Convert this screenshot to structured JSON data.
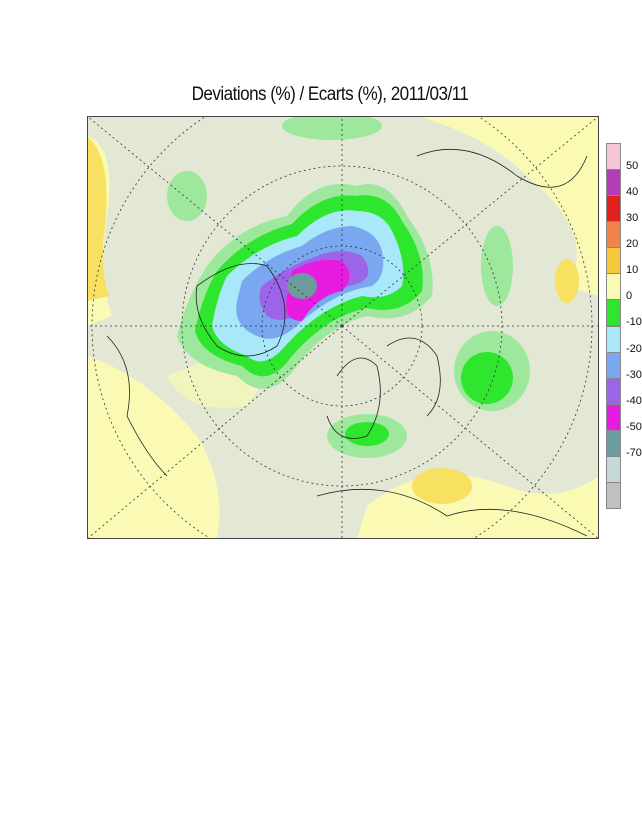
{
  "title": "Deviations (%) / Ecarts (%), 2011/03/11",
  "colorbar": {
    "labels": [
      "50",
      "40",
      "30",
      "20",
      "10",
      "0",
      "-10",
      "-20",
      "-30",
      "-40",
      "-50",
      "-70"
    ],
    "colors": [
      "#f7c6d6",
      "#b43cb4",
      "#e0201c",
      "#f0844c",
      "#f8c83c",
      "#fafab4",
      "#2ee62e",
      "#a8e8f8",
      "#7aa8f0",
      "#9c64e8",
      "#e81ce0",
      "#6c9c9c",
      "#c8d8d8",
      "#c0c0c0"
    ]
  }
}
